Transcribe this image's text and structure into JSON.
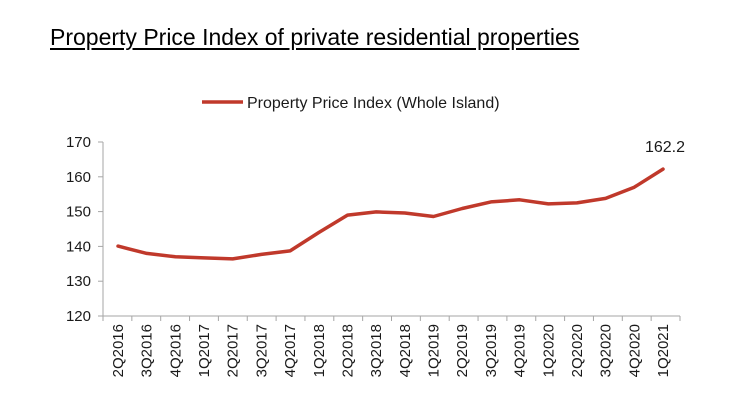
{
  "page": {
    "title": "Property Price Index of private residential properties"
  },
  "chart_data": {
    "type": "line",
    "title": "",
    "xlabel": "",
    "ylabel": "",
    "ylim": [
      120,
      170
    ],
    "yticks": [
      120,
      130,
      140,
      150,
      160,
      170
    ],
    "grid": false,
    "legend_position": "top-center",
    "categories": [
      "2Q2016",
      "3Q2016",
      "4Q2016",
      "1Q2017",
      "2Q2017",
      "3Q2017",
      "4Q2017",
      "1Q2018",
      "2Q2018",
      "3Q2018",
      "4Q2018",
      "1Q2019",
      "2Q2019",
      "3Q2019",
      "4Q2019",
      "1Q2020",
      "2Q2020",
      "3Q2020",
      "4Q2020",
      "1Q2021"
    ],
    "series": [
      {
        "name": "Property Price Index (Whole Island)",
        "color": "#c0392b",
        "values": [
          140.1,
          138.0,
          137.0,
          136.7,
          136.4,
          137.7,
          138.7,
          144.0,
          149.0,
          149.9,
          149.6,
          148.6,
          150.9,
          152.8,
          153.4,
          152.2,
          152.5,
          153.8,
          157.0,
          162.2
        ]
      }
    ],
    "annotations": [
      {
        "category": "1Q2021",
        "value": 162.2,
        "text": "162.2"
      }
    ]
  }
}
